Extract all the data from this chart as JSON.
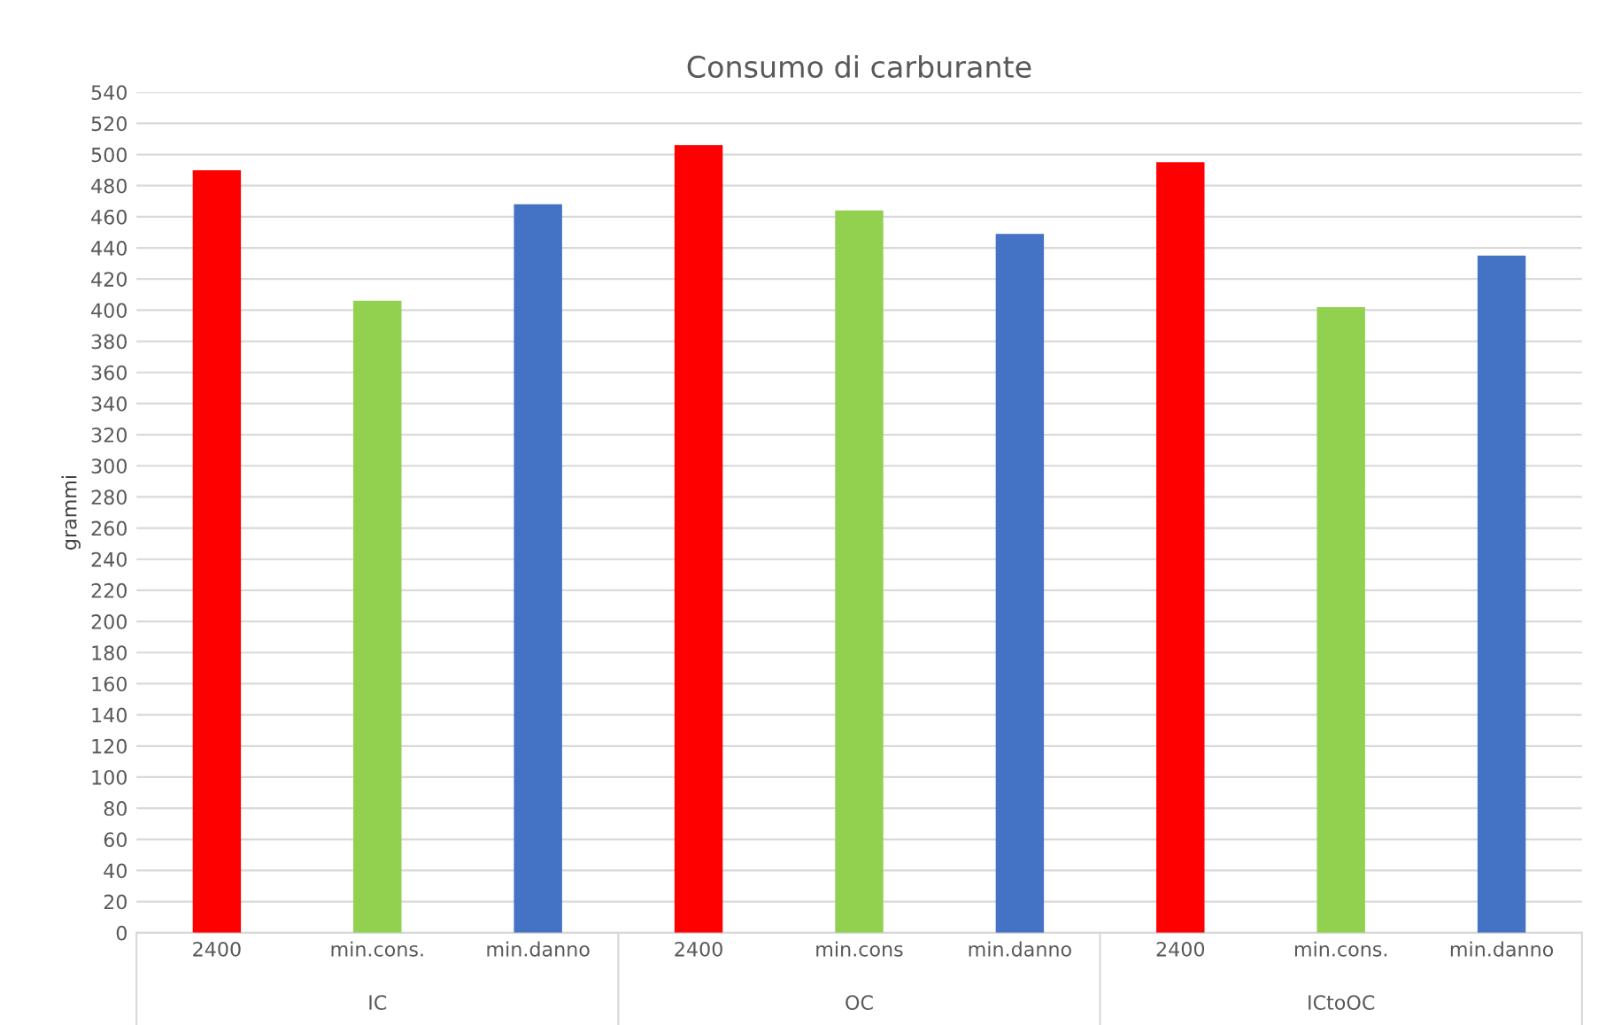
{
  "chart_data": {
    "type": "bar",
    "title": "Consumo di carburante",
    "ylabel": "grammi",
    "categories": [
      "2400",
      "min.cons.",
      "min.danno",
      "2400",
      "min.cons",
      "min.danno",
      "2400",
      "min.cons.",
      "min.danno"
    ],
    "values": [
      490,
      406,
      468,
      506,
      464,
      449,
      495,
      402,
      435
    ],
    "colors": [
      "#ff0000",
      "#92d050",
      "#4472c4",
      "#ff0000",
      "#92d050",
      "#4472c4",
      "#ff0000",
      "#92d050",
      "#4472c4"
    ],
    "annotations": [
      "IC",
      "OC",
      "ICtoOC"
    ],
    "ylim": [
      0,
      540
    ],
    "yticks": [
      0,
      20,
      40,
      60,
      80,
      100,
      120,
      140,
      160,
      180,
      200,
      220,
      240,
      260,
      280,
      300,
      320,
      340,
      360,
      380,
      400,
      420,
      440,
      460,
      480,
      500,
      520,
      540
    ],
    "grid": "y",
    "legend": false
  }
}
